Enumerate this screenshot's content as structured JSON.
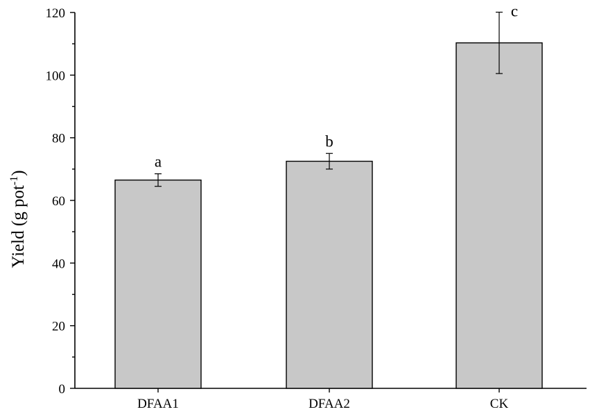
{
  "chart_data": {
    "type": "bar",
    "categories": [
      "DFAA1",
      "DFAA2",
      "CK"
    ],
    "values": [
      66.5,
      72.5,
      110.3
    ],
    "errors": [
      2.0,
      2.5,
      9.8
    ],
    "significance_labels": [
      "a",
      "b",
      "c"
    ],
    "title": "",
    "xlabel": "",
    "ylabel": {
      "main": "Yield (g pot",
      "superscript": "-1",
      "close": ")"
    },
    "ylim": [
      0,
      120
    ],
    "yticks": [
      0,
      20,
      40,
      60,
      80,
      100,
      120
    ],
    "grid": false,
    "legend": "none",
    "colors": {
      "bar_fill": "#c8c8c8",
      "bar_stroke": "#000000",
      "axis": "#000000"
    }
  }
}
